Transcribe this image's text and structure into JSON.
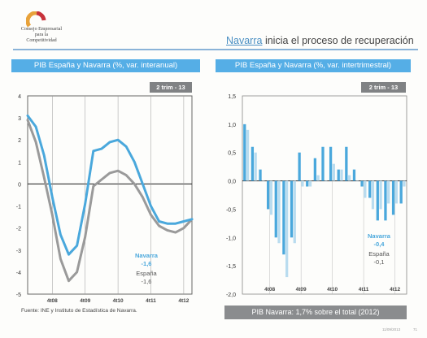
{
  "header": {
    "org_line1": "Consejo Empresarial",
    "org_line2": "para la",
    "org_line3": "Competitividad",
    "title_highlight": "Navarra",
    "title_rest": " inicia el proceso de recuperación"
  },
  "colors": {
    "navarra": "#4aa8dc",
    "espana": "#9a9a9a",
    "header_bg": "#55aee6",
    "tag_bg": "#808284",
    "accent": "#4a8fc3"
  },
  "left_chart": {
    "header": "PIB España y Navarra (%, var. interanual)",
    "tag": "2 trim - 13",
    "navarra_label": "Navarra",
    "navarra_value": "-1,6",
    "espana_label": "España",
    "espana_value": "-1,6"
  },
  "right_chart": {
    "header": "PIB España y Navarra (%, var. intertrimestral)",
    "tag": "2 trim - 13",
    "navarra_label": "Navarra",
    "navarra_value": "-0,4",
    "espana_label": "España",
    "espana_value": "-0,1"
  },
  "footer": {
    "source": "Fuente: INE y Instituto de Estadística de Navarra.",
    "bar_text": "PIB Navarra: 1,7% sobre el total (2012)",
    "date": "11/09/2013",
    "page": "71"
  },
  "chart_data": [
    {
      "type": "line",
      "title": "PIB España y Navarra (%, var. interanual)",
      "xlabel": "",
      "ylabel": "",
      "ylim": [
        -5,
        4
      ],
      "yticks": [
        4,
        3,
        2,
        1,
        0,
        -1,
        -2,
        -3,
        -4,
        -5
      ],
      "x_tick_labels": [
        "4t08",
        "4t09",
        "4t10",
        "4t11",
        "4t12"
      ],
      "x_tick_index": [
        3,
        7,
        11,
        15,
        19
      ],
      "series": [
        {
          "name": "Navarra",
          "values": [
            3.1,
            2.6,
            1.3,
            -0.6,
            -2.3,
            -3.2,
            -2.8,
            -0.9,
            1.5,
            1.6,
            1.9,
            2.0,
            1.7,
            1.0,
            0.0,
            -1.0,
            -1.7,
            -1.8,
            -1.8,
            -1.7,
            -1.6
          ]
        },
        {
          "name": "España",
          "values": [
            2.9,
            1.9,
            0.3,
            -1.4,
            -3.4,
            -4.4,
            -4.0,
            -2.4,
            -0.1,
            0.2,
            0.5,
            0.6,
            0.4,
            0.0,
            -0.6,
            -1.4,
            -1.9,
            -2.1,
            -2.2,
            -2.0,
            -1.6
          ]
        }
      ]
    },
    {
      "type": "bar",
      "title": "PIB España y Navarra (%, var. intertrimestral)",
      "xlabel": "",
      "ylabel": "",
      "ylim": [
        -2.0,
        1.5
      ],
      "yticks": [
        "1,5",
        "1,0",
        "0,5",
        "0,0",
        "-0,5",
        "-1,0",
        "-1,5",
        "-2,0"
      ],
      "x_tick_labels": [
        "4t08",
        "4t09",
        "4t10",
        "4t11",
        "4t12"
      ],
      "x_tick_index": [
        3,
        7,
        11,
        15,
        19
      ],
      "series": [
        {
          "name": "Navarra",
          "values": [
            1.0,
            0.6,
            0.2,
            -0.5,
            -1.0,
            -1.3,
            -1.0,
            0.5,
            -0.1,
            0.4,
            0.6,
            0.6,
            0.2,
            0.6,
            0.2,
            -0.1,
            -0.3,
            -0.7,
            -0.7,
            -0.6,
            -0.4
          ]
        },
        {
          "name": "España",
          "values": [
            0.9,
            0.5,
            0.0,
            -0.6,
            -1.1,
            -1.7,
            -1.1,
            -0.1,
            -0.1,
            0.1,
            0.0,
            0.3,
            0.2,
            0.1,
            0.0,
            -0.3,
            -0.5,
            -0.5,
            -0.4,
            -0.4,
            -0.1
          ]
        }
      ]
    }
  ]
}
